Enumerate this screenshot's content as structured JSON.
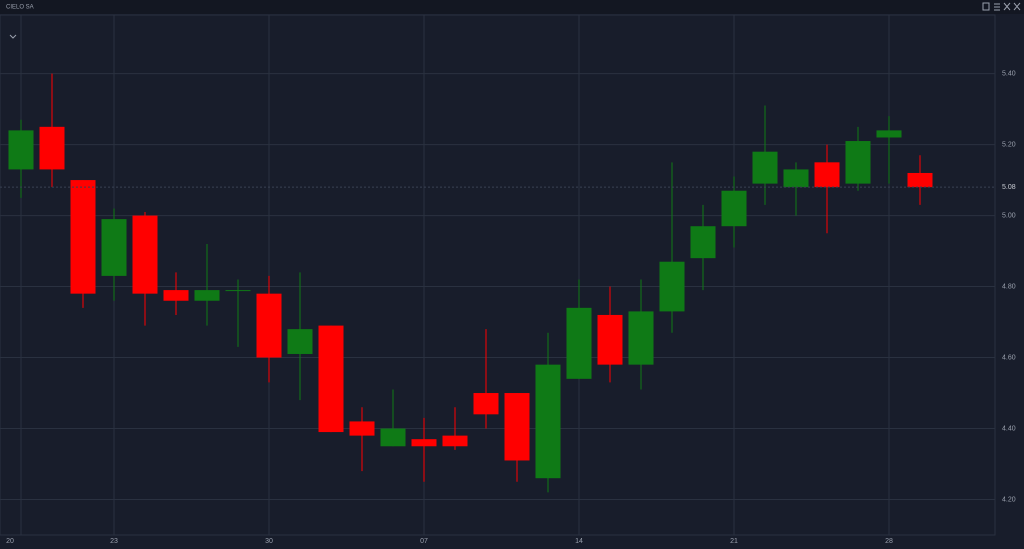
{
  "chart_data": {
    "type": "candlestick",
    "title": "CIELO SA",
    "categories": [
      "20",
      null,
      null,
      "23",
      null,
      null,
      null,
      null,
      "30",
      null,
      null,
      null,
      null,
      "07",
      null,
      null,
      null,
      null,
      "14",
      null,
      null,
      null,
      null,
      "21",
      null,
      null,
      null,
      null,
      "28",
      null
    ],
    "open": [
      5.13,
      5.25,
      5.1,
      4.83,
      5.0,
      4.79,
      4.76,
      4.79,
      4.78,
      4.61,
      4.69,
      4.42,
      4.35,
      4.37,
      4.38,
      4.5,
      4.5,
      4.26,
      4.54,
      4.72,
      4.58,
      4.73,
      4.88,
      4.97,
      5.09,
      5.08,
      5.15,
      5.09,
      5.22,
      5.12
    ],
    "high": [
      5.27,
      5.4,
      5.1,
      5.02,
      5.01,
      4.84,
      4.92,
      4.82,
      4.83,
      4.84,
      4.69,
      4.46,
      4.51,
      4.43,
      4.46,
      4.68,
      4.5,
      4.67,
      4.82,
      4.8,
      4.82,
      5.15,
      5.03,
      5.11,
      5.31,
      5.15,
      5.2,
      5.25,
      5.28,
      5.17
    ],
    "low": [
      5.05,
      5.08,
      4.74,
      4.76,
      4.69,
      4.72,
      4.69,
      4.63,
      4.53,
      4.48,
      4.39,
      4.28,
      4.35,
      4.25,
      4.34,
      4.4,
      4.25,
      4.22,
      4.54,
      4.53,
      4.51,
      4.67,
      4.79,
      4.91,
      5.03,
      5.0,
      4.95,
      5.07,
      5.09,
      5.03
    ],
    "close": [
      5.24,
      5.13,
      4.78,
      4.99,
      4.78,
      4.76,
      4.79,
      4.79,
      4.6,
      4.68,
      4.39,
      4.38,
      4.4,
      4.35,
      4.35,
      4.44,
      4.31,
      4.58,
      4.74,
      4.58,
      4.73,
      4.87,
      4.97,
      5.07,
      5.18,
      5.13,
      5.08,
      5.21,
      5.24,
      5.08
    ],
    "up_color": "#0f7a16",
    "down_color": "#ff0000",
    "ylim": [
      4.1,
      5.52
    ],
    "yticks": [
      {
        "value": 4.2,
        "label": "4.20"
      },
      {
        "value": 4.4,
        "label": "4.40"
      },
      {
        "value": 4.6,
        "label": "4.60"
      },
      {
        "value": 4.8,
        "label": "4.80"
      },
      {
        "value": 5.0,
        "label": "5.00"
      },
      {
        "value": 5.2,
        "label": "5.20"
      },
      {
        "value": 5.4,
        "label": "5.40"
      }
    ],
    "last_price": 5.08,
    "grid": true
  }
}
